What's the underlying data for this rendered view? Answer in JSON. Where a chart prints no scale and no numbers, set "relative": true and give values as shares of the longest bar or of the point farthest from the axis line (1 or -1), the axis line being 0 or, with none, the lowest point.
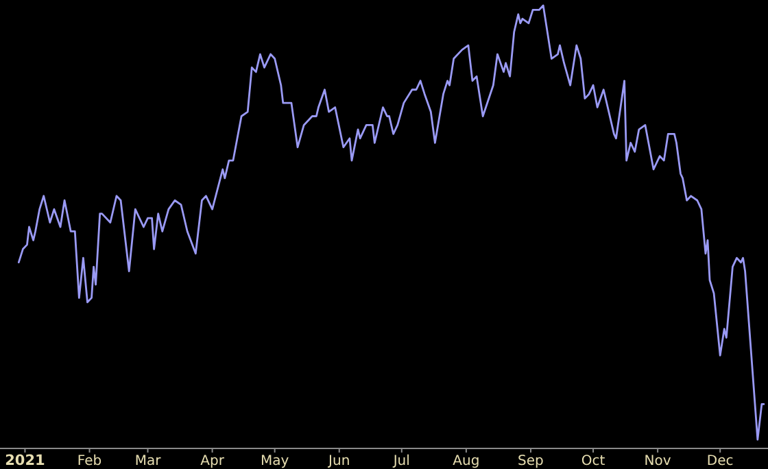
{
  "chart_data": {
    "type": "line",
    "relative": true,
    "xlim": [
      "2020-12-20",
      "2021-12-24"
    ],
    "xticks": [
      {
        "value": "2021-01-01",
        "label": "2021"
      },
      {
        "value": "2021-02-01",
        "label": "Feb"
      },
      {
        "value": "2021-03-01",
        "label": "Mar"
      },
      {
        "value": "2021-04-01",
        "label": "Apr"
      },
      {
        "value": "2021-05-01",
        "label": "May"
      },
      {
        "value": "2021-06-01",
        "label": "Jun"
      },
      {
        "value": "2021-07-01",
        "label": "Jul"
      },
      {
        "value": "2021-08-01",
        "label": "Aug"
      },
      {
        "value": "2021-09-01",
        "label": "Sep"
      },
      {
        "value": "2021-10-01",
        "label": "Oct"
      },
      {
        "value": "2021-11-01",
        "label": "Nov"
      },
      {
        "value": "2021-12-01",
        "label": "Dec"
      }
    ],
    "grid": false,
    "marker": "none",
    "line_style": "solid",
    "x": [
      "2020-12-29",
      "2020-12-31",
      "2021-01-02",
      "2021-01-03",
      "2021-01-05",
      "2021-01-06",
      "2021-01-08",
      "2021-01-10",
      "2021-01-13",
      "2021-01-15",
      "2021-01-18",
      "2021-01-20",
      "2021-01-23",
      "2021-01-25",
      "2021-01-27",
      "2021-01-29",
      "2021-01-31",
      "2021-02-02",
      "2021-02-03",
      "2021-02-04",
      "2021-02-06",
      "2021-02-07",
      "2021-02-11",
      "2021-02-14",
      "2021-02-16",
      "2021-02-20",
      "2021-02-23",
      "2021-02-27",
      "2021-03-01",
      "2021-03-03",
      "2021-03-04",
      "2021-03-06",
      "2021-03-08",
      "2021-03-11",
      "2021-03-14",
      "2021-03-17",
      "2021-03-20",
      "2021-03-24",
      "2021-03-27",
      "2021-03-29",
      "2021-04-01",
      "2021-04-06",
      "2021-04-07",
      "2021-04-09",
      "2021-04-11",
      "2021-04-13",
      "2021-04-15",
      "2021-04-18",
      "2021-04-20",
      "2021-04-22",
      "2021-04-24",
      "2021-04-26",
      "2021-04-29",
      "2021-05-01",
      "2021-05-04",
      "2021-05-05",
      "2021-05-07",
      "2021-05-09",
      "2021-05-12",
      "2021-05-15",
      "2021-05-19",
      "2021-05-21",
      "2021-05-22",
      "2021-05-25",
      "2021-05-27",
      "2021-05-30",
      "2021-06-03",
      "2021-06-06",
      "2021-06-07",
      "2021-06-10",
      "2021-06-11",
      "2021-06-14",
      "2021-06-17",
      "2021-06-18",
      "2021-06-22",
      "2021-06-24",
      "2021-06-25",
      "2021-06-27",
      "2021-06-29",
      "2021-07-02",
      "2021-07-06",
      "2021-07-08",
      "2021-07-10",
      "2021-07-12",
      "2021-07-15",
      "2021-07-17",
      "2021-07-21",
      "2021-07-23",
      "2021-07-24",
      "2021-07-26",
      "2021-07-30",
      "2021-08-02",
      "2021-08-04",
      "2021-08-06",
      "2021-08-09",
      "2021-08-14",
      "2021-08-16",
      "2021-08-19",
      "2021-08-20",
      "2021-08-22",
      "2021-08-24",
      "2021-08-26",
      "2021-08-27",
      "2021-08-28",
      "2021-08-31",
      "2021-09-02",
      "2021-09-05",
      "2021-09-07",
      "2021-09-10",
      "2021-09-11",
      "2021-09-14",
      "2021-09-15",
      "2021-09-17",
      "2021-09-20",
      "2021-09-23",
      "2021-09-25",
      "2021-09-27",
      "2021-09-29",
      "2021-10-01",
      "2021-10-03",
      "2021-10-06",
      "2021-10-11",
      "2021-10-12",
      "2021-10-16",
      "2021-10-17",
      "2021-10-19",
      "2021-10-21",
      "2021-10-23",
      "2021-10-26",
      "2021-10-30",
      "2021-11-02",
      "2021-11-04",
      "2021-11-06",
      "2021-11-09",
      "2021-11-10",
      "2021-11-12",
      "2021-11-13",
      "2021-11-15",
      "2021-11-17",
      "2021-11-20",
      "2021-11-22",
      "2021-11-24",
      "2021-11-25",
      "2021-11-26",
      "2021-11-28",
      "2021-12-01",
      "2021-12-03",
      "2021-12-04",
      "2021-12-07",
      "2021-12-09",
      "2021-12-11",
      "2021-12-12",
      "2021-12-13",
      "2021-12-19",
      "2021-12-21",
      "2021-12-22"
    ],
    "series": [
      {
        "color": "#9a9af5",
        "values": [
          0.42,
          0.45,
          0.46,
          0.5,
          0.47,
          0.49,
          0.54,
          0.57,
          0.51,
          0.54,
          0.5,
          0.56,
          0.49,
          0.49,
          0.34,
          0.43,
          0.33,
          0.34,
          0.41,
          0.37,
          0.53,
          0.53,
          0.51,
          0.57,
          0.56,
          0.4,
          0.54,
          0.5,
          0.52,
          0.52,
          0.45,
          0.53,
          0.49,
          0.54,
          0.56,
          0.55,
          0.49,
          0.44,
          0.56,
          0.57,
          0.54,
          0.63,
          0.61,
          0.65,
          0.65,
          0.7,
          0.75,
          0.76,
          0.86,
          0.85,
          0.89,
          0.86,
          0.89,
          0.88,
          0.82,
          0.78,
          0.78,
          0.78,
          0.68,
          0.73,
          0.75,
          0.75,
          0.77,
          0.81,
          0.76,
          0.77,
          0.68,
          0.7,
          0.65,
          0.72,
          0.7,
          0.73,
          0.73,
          0.69,
          0.77,
          0.75,
          0.75,
          0.71,
          0.73,
          0.78,
          0.81,
          0.81,
          0.83,
          0.8,
          0.76,
          0.69,
          0.8,
          0.83,
          0.82,
          0.88,
          0.9,
          0.91,
          0.83,
          0.84,
          0.75,
          0.82,
          0.89,
          0.85,
          0.87,
          0.84,
          0.94,
          0.98,
          0.96,
          0.97,
          0.96,
          0.99,
          0.99,
          1.0,
          0.91,
          0.88,
          0.89,
          0.91,
          0.87,
          0.82,
          0.91,
          0.88,
          0.79,
          0.8,
          0.82,
          0.77,
          0.81,
          0.71,
          0.7,
          0.83,
          0.65,
          0.69,
          0.67,
          0.72,
          0.73,
          0.63,
          0.66,
          0.65,
          0.71,
          0.71,
          0.69,
          0.62,
          0.61,
          0.56,
          0.57,
          0.56,
          0.54,
          0.44,
          0.47,
          0.38,
          0.35,
          0.21,
          0.27,
          0.25,
          0.41,
          0.43,
          0.42,
          0.43,
          0.4,
          0.02,
          0.1,
          0.1
        ]
      }
    ]
  }
}
